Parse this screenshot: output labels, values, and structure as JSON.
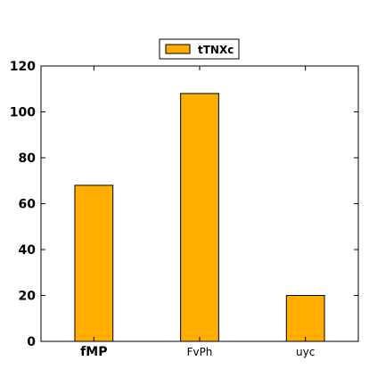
{
  "chart_data": {
    "type": "bar",
    "categories": [
      "fMP",
      "FvPh",
      "uyc"
    ],
    "category_label_bold": [
      true,
      false,
      false
    ],
    "series": [
      {
        "name": "tTNXc",
        "values": [
          68,
          108,
          20
        ],
        "color": "#ffae00"
      }
    ],
    "title": "",
    "xlabel": "",
    "ylabel": "",
    "ylim": [
      0,
      120
    ],
    "yticks": [
      0,
      20,
      40,
      60,
      80,
      100,
      120
    ],
    "grid": false,
    "legend_position": "top-center"
  }
}
